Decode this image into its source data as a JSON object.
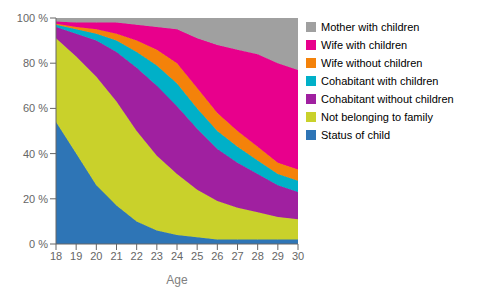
{
  "chart_data": {
    "type": "area",
    "stacked": true,
    "legend": "right",
    "grid": false,
    "xlabel": "Age",
    "x": [
      18,
      19,
      20,
      21,
      22,
      23,
      24,
      25,
      26,
      27,
      28,
      29,
      30
    ],
    "xlim": [
      18,
      30
    ],
    "xticks": [
      18,
      19,
      20,
      21,
      22,
      23,
      24,
      25,
      26,
      27,
      28,
      29,
      30
    ],
    "ylim": [
      0,
      100
    ],
    "yticks": [
      {
        "value": 0,
        "label": "0 %"
      },
      {
        "value": 20,
        "label": "20 %"
      },
      {
        "value": 40,
        "label": "40 %"
      },
      {
        "value": 60,
        "label": "60 %"
      },
      {
        "value": 80,
        "label": "80 %"
      },
      {
        "value": 100,
        "label": "100 %"
      }
    ],
    "series": [
      {
        "name": "Status of child",
        "color": "#2E75B6",
        "values": [
          54,
          40,
          26,
          17,
          10,
          6,
          4,
          3,
          2,
          2,
          2,
          2,
          2
        ]
      },
      {
        "name": "Not belonging to family",
        "color": "#C9D12B",
        "values": [
          37,
          43,
          48,
          46,
          40,
          33,
          27,
          21,
          17,
          14,
          12,
          10,
          9
        ]
      },
      {
        "name": "Cohabitant without children",
        "color": "#A020A0",
        "values": [
          5,
          10,
          16,
          22,
          28,
          31,
          30,
          27,
          23,
          20,
          17,
          14,
          12
        ]
      },
      {
        "name": "Cohabitant with children",
        "color": "#00B0C8",
        "values": [
          1,
          2,
          3,
          5,
          7,
          9,
          10,
          9,
          8,
          7,
          6,
          5,
          5
        ]
      },
      {
        "name": "Wife without children",
        "color": "#F4820A",
        "values": [
          0.5,
          1,
          2,
          3,
          5,
          7,
          9,
          9,
          8,
          7,
          6,
          5,
          5
        ]
      },
      {
        "name": "Wife with children",
        "color": "#E8008C",
        "values": [
          1,
          2,
          3,
          5,
          7,
          10,
          15,
          22,
          30,
          36,
          41,
          44,
          44
        ]
      },
      {
        "name": "Mother with children",
        "color": "#A0A0A0",
        "values": [
          1.5,
          2,
          2,
          2,
          3,
          4,
          5,
          9,
          12,
          14,
          16,
          20,
          23
        ]
      }
    ]
  }
}
